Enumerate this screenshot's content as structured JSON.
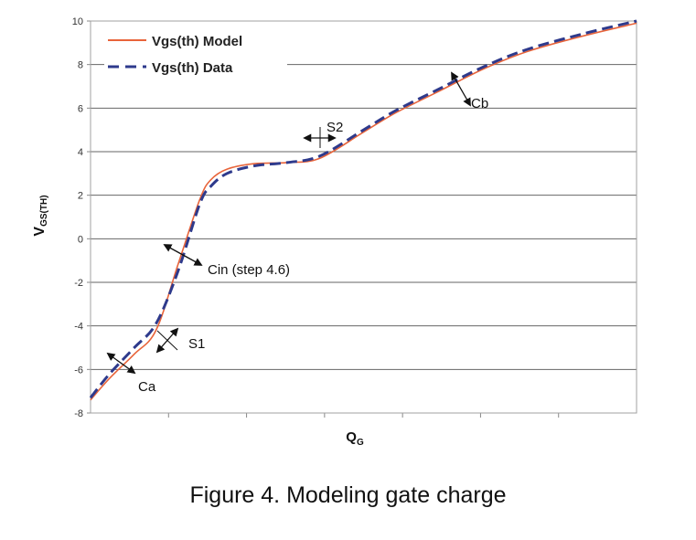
{
  "chart_data": {
    "type": "line",
    "xlabel": "Q",
    "xlabel_sub": "G",
    "ylabel": "V",
    "ylabel_sub": "GS(TH)",
    "ylim": [
      -8,
      10
    ],
    "yticks": [
      10,
      8,
      6,
      4,
      2,
      0,
      -2,
      -4,
      -6,
      -8
    ],
    "ytick_labels": [
      "10",
      "8",
      "6",
      "4",
      "2",
      "0",
      "-2",
      "-4",
      "-6",
      "-8"
    ],
    "xlim": [
      0,
      10
    ],
    "x_tick_count": 7,
    "grid": "horizontal",
    "legend_position": "top-left",
    "series": [
      {
        "name": "Vgs(th) Model",
        "color": "#e8643a",
        "style": "solid",
        "x": [
          0,
          0.35,
          0.8,
          1.2,
          1.6,
          2.0,
          2.2,
          2.5,
          3.0,
          3.6,
          4.2,
          5.0,
          5.6,
          6.4,
          7.2,
          8.0,
          9.0,
          10.0
        ],
        "y": [
          -7.4,
          -6.4,
          -5.3,
          -4.2,
          -1.2,
          1.8,
          2.7,
          3.2,
          3.45,
          3.5,
          3.7,
          4.9,
          5.8,
          6.8,
          7.8,
          8.6,
          9.3,
          9.9
        ]
      },
      {
        "name": "Vgs(th) Data",
        "color": "#2e3a8c",
        "style": "dashed",
        "x": [
          0,
          0.35,
          0.8,
          1.2,
          1.6,
          2.0,
          2.2,
          2.5,
          3.0,
          3.6,
          4.2,
          5.0,
          5.6,
          6.4,
          7.2,
          8.0,
          9.0,
          10.0
        ],
        "y": [
          -7.3,
          -6.2,
          -5.0,
          -3.9,
          -1.5,
          1.6,
          2.4,
          3.0,
          3.35,
          3.5,
          3.8,
          5.0,
          5.9,
          6.9,
          7.9,
          8.7,
          9.4,
          10.0
        ]
      }
    ],
    "annotations": [
      {
        "label": "Ca",
        "x": 0.4,
        "y": -6.5
      },
      {
        "label": "S1",
        "x": 1.4,
        "y": -4.8
      },
      {
        "label": "Cin (step 4.6)",
        "x": 1.7,
        "y": 0.0
      },
      {
        "label": "S2",
        "x": 4.3,
        "y": 4.5
      },
      {
        "label": "Cb",
        "x": 6.8,
        "y": 6.8
      }
    ]
  },
  "caption": "Figure 4. Modeling gate charge",
  "colors": {
    "model": "#e8643a",
    "data": "#2e3a8c",
    "grid": "#666666",
    "plot_border": "#a0a0a0"
  }
}
